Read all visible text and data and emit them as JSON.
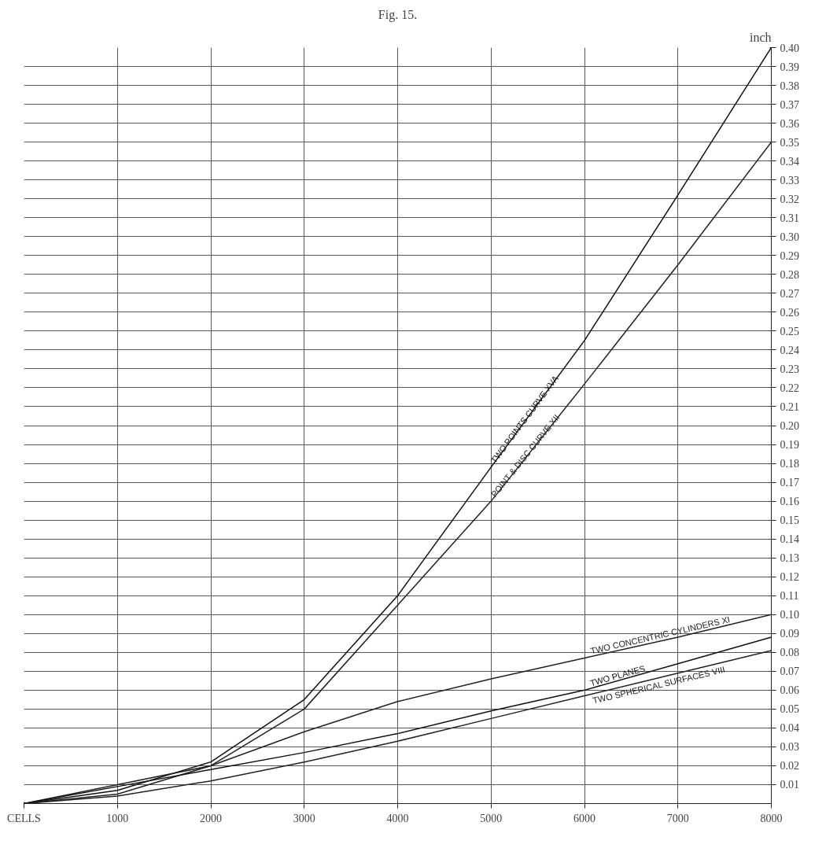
{
  "chart_data": {
    "type": "line",
    "title": "Fig. 15.",
    "ylabel": "inch",
    "x": [
      0,
      1000,
      2000,
      3000,
      4000,
      5000,
      6000,
      7000,
      8000
    ],
    "xlim": [
      0,
      8000
    ],
    "xticks": [
      {
        "value": 0,
        "label": "CELLS"
      },
      1000,
      2000,
      3000,
      4000,
      5000,
      6000,
      7000,
      8000
    ],
    "ylim": [
      0,
      0.4
    ],
    "yticks": [
      0.01,
      0.02,
      0.03,
      0.04,
      0.05,
      0.06,
      0.07,
      0.08,
      0.09,
      {
        "value": 0.1,
        "label": "0.10"
      },
      0.11,
      0.12,
      0.13,
      0.14,
      0.15,
      0.16,
      0.17,
      0.18,
      0.19,
      {
        "value": 0.2,
        "label": "0.20"
      },
      0.21,
      0.22,
      0.23,
      0.24,
      0.25,
      0.26,
      0.27,
      0.28,
      0.29,
      {
        "value": 0.3,
        "label": "0.30"
      },
      0.31,
      0.32,
      0.33,
      0.34,
      0.35,
      0.36,
      0.37,
      0.38,
      0.39,
      {
        "value": 0.4,
        "label": "0.40"
      }
    ],
    "grid": true,
    "line_style": "solid",
    "series": [
      {
        "name": "TWO POINTS CURVE XVA",
        "color": "#111111",
        "values": [
          0,
          0.007,
          0.022,
          0.055,
          0.11,
          0.178,
          0.245,
          0.322,
          0.4
        ]
      },
      {
        "name": "POINT & DISC CURVE XII",
        "color": "#222222",
        "values": [
          0,
          0.005,
          0.02,
          0.05,
          0.105,
          0.16,
          0.222,
          0.285,
          0.35
        ]
      },
      {
        "name": "TWO CONCENTRIC CYLINDERS XI",
        "color": "#222222",
        "values": [
          0,
          0.01,
          0.02,
          0.038,
          0.054,
          0.066,
          0.077,
          0.088,
          0.1
        ]
      },
      {
        "name": "TWO PLANES",
        "color": "#111111",
        "values": [
          0,
          0.009,
          0.018,
          0.027,
          0.037,
          0.049,
          0.06,
          0.074,
          0.088
        ]
      },
      {
        "name": "TWO SPHERICAL SURFACES VIII",
        "color": "#222222",
        "values": [
          0,
          0.004,
          0.012,
          0.022,
          0.033,
          0.045,
          0.057,
          0.069,
          0.081
        ]
      }
    ]
  }
}
